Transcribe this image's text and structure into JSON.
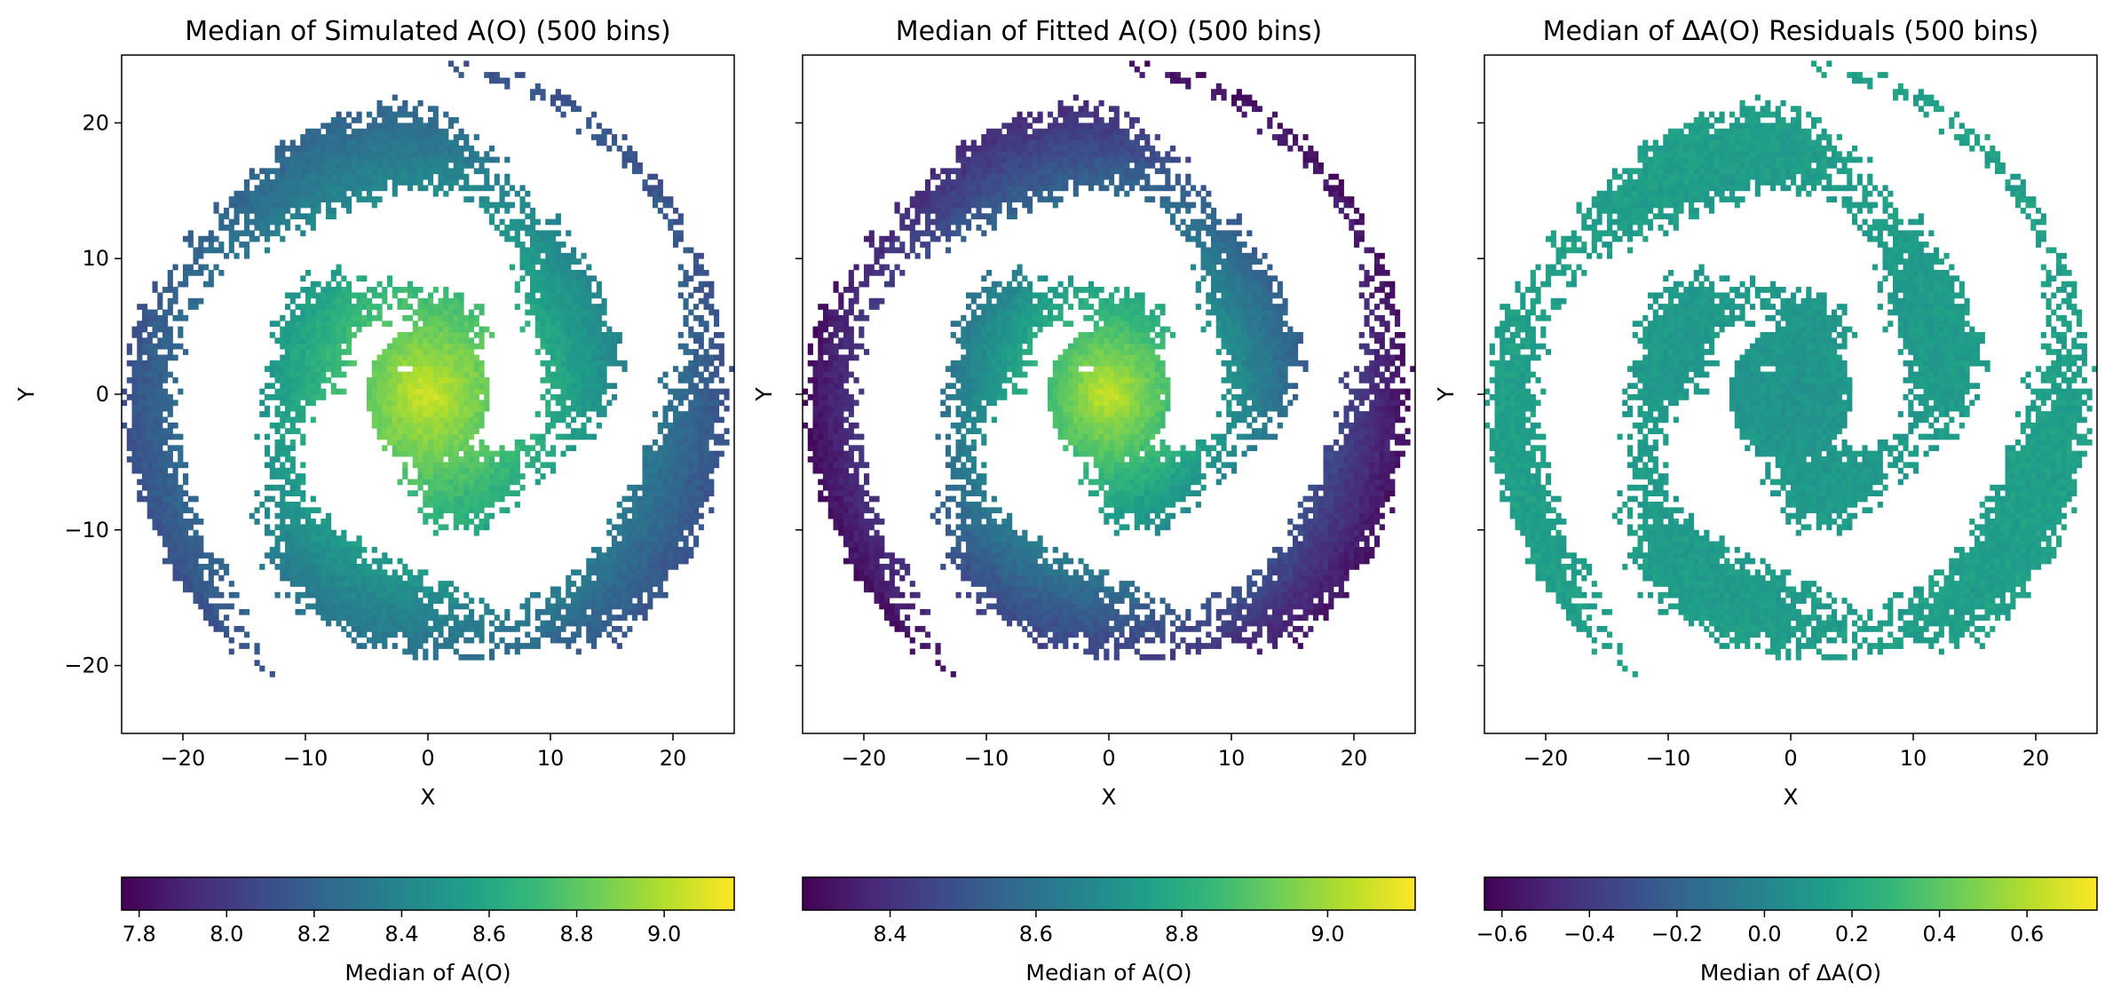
{
  "chart_data": [
    {
      "type": "heatmap",
      "title": "Median of Simulated A(O) (500 bins)",
      "xlabel": "X",
      "ylabel": "Y",
      "xlim": [
        -25,
        25
      ],
      "ylim": [
        -25,
        25
      ],
      "xticks": [
        -20,
        -10,
        0,
        10,
        20
      ],
      "yticks": [
        -20,
        -10,
        0,
        10,
        20
      ],
      "grid": false,
      "bins": 500,
      "colormap": "viridis",
      "value_model": {
        "center_value": 9.1,
        "edge_value": 8.1,
        "disk_radius": 25
      },
      "colorbar": {
        "label": "Median of A(O)",
        "orientation": "horizontal",
        "placement": "bottom",
        "range": [
          7.76,
          9.16
        ],
        "ticks": [
          7.8,
          8.0,
          8.2,
          8.4,
          8.6,
          8.8,
          9.0
        ]
      }
    },
    {
      "type": "heatmap",
      "title": "Median of Fitted A(O) (500 bins)",
      "xlabel": "X",
      "ylabel": "Y",
      "xlim": [
        -25,
        25
      ],
      "ylim": [
        -25,
        25
      ],
      "xticks": [
        -20,
        -10,
        0,
        10,
        20
      ],
      "yticks": [
        -20,
        -10,
        0,
        10,
        20
      ],
      "grid": false,
      "bins": 500,
      "colormap": "viridis",
      "value_model": {
        "center_value": 9.08,
        "edge_value": 8.3,
        "disk_radius": 25
      },
      "colorbar": {
        "label": "Median of A(O)",
        "orientation": "horizontal",
        "placement": "bottom",
        "range": [
          8.28,
          9.12
        ],
        "ticks": [
          8.4,
          8.6,
          8.8,
          9.0
        ]
      }
    },
    {
      "type": "heatmap",
      "title": "Median of ΔA(O) Residuals (500 bins)",
      "xlabel": "X",
      "ylabel": "Y",
      "xlim": [
        -25,
        25
      ],
      "ylim": [
        -25,
        25
      ],
      "xticks": [
        -20,
        -10,
        0,
        10,
        20
      ],
      "yticks": [
        -20,
        -10,
        0,
        10,
        20
      ],
      "grid": false,
      "bins": 500,
      "colormap": "viridis",
      "value_model": {
        "center_value": 0.08,
        "edge_value": 0.15,
        "disk_radius": 25
      },
      "colorbar": {
        "label": "Median of ΔA(O)",
        "orientation": "horizontal",
        "placement": "bottom",
        "range": [
          -0.64,
          0.76
        ],
        "ticks": [
          -0.6,
          -0.4,
          -0.2,
          0.0,
          0.2,
          0.4,
          0.6
        ]
      }
    }
  ],
  "colors": {
    "viridis": [
      "#440154",
      "#482878",
      "#3e4989",
      "#31688e",
      "#26828e",
      "#1f9e89",
      "#35b779",
      "#6ece58",
      "#b5de2b",
      "#fde725"
    ],
    "axes": "#000000",
    "background": "#ffffff"
  }
}
